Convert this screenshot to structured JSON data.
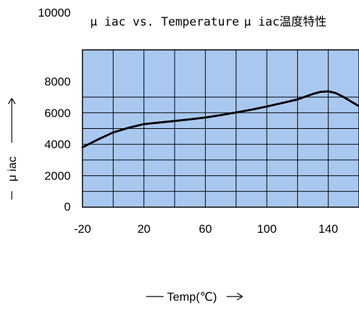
{
  "chart_data": {
    "type": "line",
    "title": "μ iac vs. Temperature",
    "subtitle": "μ iac温度特性",
    "xlabel": "Temp(℃)",
    "ylabel": "μ iac",
    "xlim": [
      -20,
      160
    ],
    "ylim": [
      0,
      10000
    ],
    "x_ticks": [
      -20,
      20,
      60,
      100,
      140
    ],
    "x_tick_labels": [
      "-20",
      "20",
      "60",
      "100",
      "140"
    ],
    "y_ticks": [
      0,
      2000,
      4000,
      6000,
      8000,
      10000
    ],
    "y_tick_labels": [
      "0",
      "2000",
      "4000",
      "6000",
      "8000",
      "10000"
    ],
    "grid": true,
    "plot_background": "#a9c8f0",
    "grid_color": "#000000",
    "line_color": "#000000",
    "series": [
      {
        "x": [
          -20,
          -10,
          0,
          10,
          20,
          30,
          40,
          50,
          60,
          70,
          80,
          90,
          100,
          110,
          120,
          130,
          135,
          140,
          145,
          150,
          160
        ],
        "values": [
          3800,
          4300,
          4750,
          5050,
          5280,
          5380,
          5480,
          5580,
          5700,
          5850,
          6020,
          6200,
          6400,
          6620,
          6850,
          7200,
          7330,
          7360,
          7250,
          7000,
          6420
        ]
      }
    ]
  }
}
